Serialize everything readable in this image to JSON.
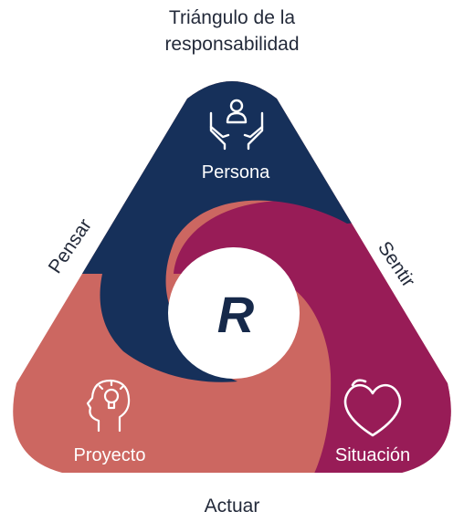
{
  "title_line1": "Triángulo de la",
  "title_line2": "responsabilidad",
  "nodes": {
    "top": {
      "label": "Persona",
      "icon": "hands-person-icon",
      "color": "#16305a"
    },
    "right": {
      "label": "Situación",
      "icon": "heart-icon",
      "color": "#981c57"
    },
    "left": {
      "label": "Proyecto",
      "icon": "head-lightbulb-icon",
      "color": "#cc6761"
    }
  },
  "edges": {
    "left": "Pensar",
    "right": "Sentir",
    "bottom": "Actuar"
  },
  "center": "R"
}
